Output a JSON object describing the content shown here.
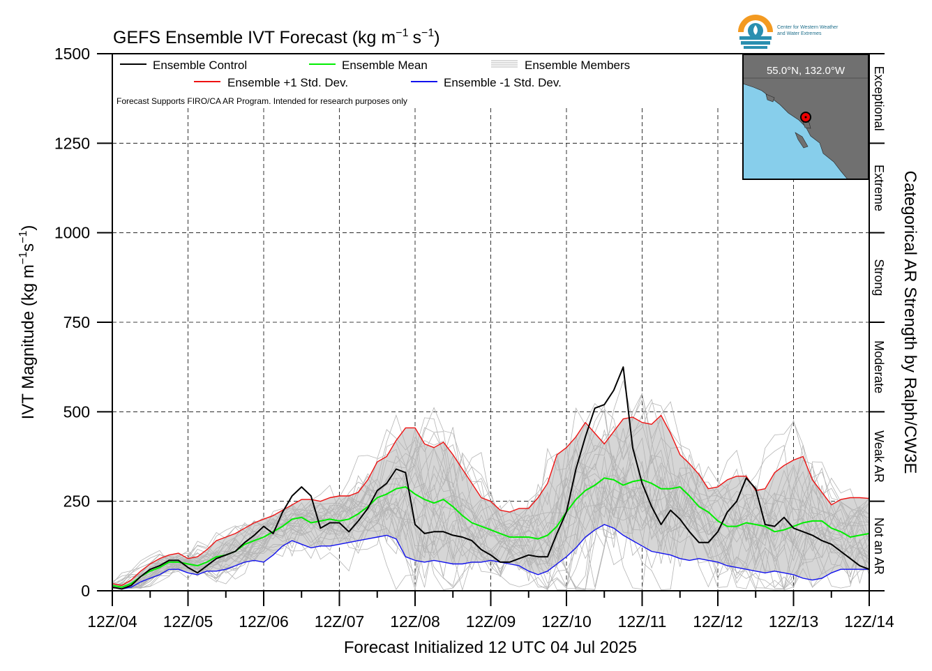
{
  "chart_data": {
    "type": "line",
    "title": "GEFS Ensemble IVT Forecast (kg m",
    "title_unit_tail": "s",
    "title_exp": "−1",
    "ylabel": "IVT Magnitude (kg m",
    "ylabel_mid": "s",
    "ylabel_exp": "−1",
    "ylabel_close": ")",
    "title_close": ")",
    "xlabel": "Forecast Initialized 12 UTC 04 Jul 2025",
    "right_label": "Categorical AR Strength by Ralph/CW3E",
    "note": "Forecast Supports FIRO/CA AR Program. Intended for research purposes only",
    "ylim": [
      0,
      1500
    ],
    "yticks": [
      0,
      250,
      500,
      750,
      1000,
      1250,
      1500
    ],
    "xlim": [
      0,
      240
    ],
    "xticks": [
      {
        "h": 0,
        "label": "12Z/04"
      },
      {
        "h": 24,
        "label": "12Z/05"
      },
      {
        "h": 48,
        "label": "12Z/06"
      },
      {
        "h": 72,
        "label": "12Z/07"
      },
      {
        "h": 96,
        "label": "12Z/08"
      },
      {
        "h": 120,
        "label": "12Z/09"
      },
      {
        "h": 144,
        "label": "12Z/10"
      },
      {
        "h": 168,
        "label": "12Z/11"
      },
      {
        "h": 192,
        "label": "12Z/12"
      },
      {
        "h": 216,
        "label": "12Z/13"
      },
      {
        "h": 240,
        "label": "12Z/14"
      }
    ],
    "categories": [
      {
        "label": "Not an AR",
        "from": 0,
        "to": 250
      },
      {
        "label": "Weak AR",
        "from": 250,
        "to": 500
      },
      {
        "label": "Moderate",
        "from": 500,
        "to": 750
      },
      {
        "label": "Strong",
        "from": 750,
        "to": 1000
      },
      {
        "label": "Extreme",
        "from": 1000,
        "to": 1250
      },
      {
        "label": "Exceptional",
        "from": 1250,
        "to": 1500
      }
    ],
    "legend": {
      "control": "Ensemble Control",
      "mean": "Ensemble Mean",
      "members": "Ensemble Members",
      "plus": "Ensemble +1 Std. Dev.",
      "minus": "Ensemble -1 Std. Dev."
    },
    "colors": {
      "control": "#000000",
      "mean": "#00ee00",
      "plus": "#ee1111",
      "minus": "#1111ee",
      "members": "#b4b4b4",
      "band": "#d6d6d6"
    },
    "series": [
      {
        "name": "Ensemble Control",
        "x": [
          0,
          3,
          6,
          9,
          12,
          15,
          18,
          21,
          24,
          27,
          30,
          33,
          36,
          39,
          42,
          45,
          48,
          51,
          54,
          57,
          60,
          63,
          66,
          69,
          72,
          75,
          78,
          81,
          84,
          87,
          90,
          93,
          96,
          99,
          102,
          105,
          108,
          111,
          114,
          117,
          120,
          123,
          126,
          129,
          132,
          135,
          138,
          141,
          144,
          147,
          150,
          153,
          156,
          159,
          162,
          165,
          168,
          171,
          174,
          177,
          180,
          183,
          186,
          189,
          192,
          195,
          198,
          201,
          204,
          207,
          210,
          213,
          216,
          219,
          222,
          225,
          228,
          231,
          234,
          237,
          240
        ],
        "values": [
          10,
          5,
          15,
          40,
          60,
          70,
          85,
          85,
          65,
          50,
          70,
          90,
          100,
          110,
          135,
          155,
          180,
          160,
          220,
          265,
          290,
          265,
          175,
          190,
          190,
          165,
          195,
          230,
          280,
          300,
          340,
          330,
          185,
          160,
          165,
          165,
          155,
          150,
          140,
          115,
          100,
          80,
          80,
          90,
          100,
          95,
          95,
          160,
          220,
          340,
          430,
          510,
          520,
          560,
          625,
          400,
          300,
          235,
          185,
          225,
          200,
          165,
          135,
          135,
          165,
          220,
          250,
          315,
          285,
          185,
          180,
          205,
          175,
          165,
          155,
          140,
          130,
          110,
          90,
          70,
          60
        ]
      },
      {
        "name": "Ensemble Mean",
        "x": [
          0,
          3,
          6,
          9,
          12,
          15,
          18,
          21,
          24,
          27,
          30,
          33,
          36,
          39,
          42,
          45,
          48,
          51,
          54,
          57,
          60,
          63,
          66,
          69,
          72,
          75,
          78,
          81,
          84,
          87,
          90,
          93,
          96,
          99,
          102,
          105,
          108,
          111,
          114,
          117,
          120,
          123,
          126,
          129,
          132,
          135,
          138,
          141,
          144,
          147,
          150,
          153,
          156,
          159,
          162,
          165,
          168,
          171,
          174,
          177,
          180,
          183,
          186,
          189,
          192,
          195,
          198,
          201,
          204,
          207,
          210,
          213,
          216,
          219,
          222,
          225,
          228,
          231,
          234,
          237,
          240
        ],
        "values": [
          15,
          10,
          20,
          40,
          55,
          65,
          80,
          80,
          75,
          70,
          80,
          95,
          100,
          110,
          130,
          140,
          150,
          165,
          180,
          200,
          205,
          190,
          195,
          200,
          195,
          200,
          215,
          235,
          260,
          270,
          285,
          290,
          270,
          255,
          245,
          255,
          235,
          210,
          190,
          180,
          170,
          160,
          150,
          150,
          150,
          145,
          155,
          180,
          220,
          255,
          280,
          295,
          315,
          310,
          295,
          305,
          310,
          300,
          285,
          285,
          290,
          265,
          235,
          220,
          195,
          180,
          180,
          190,
          185,
          180,
          165,
          170,
          180,
          190,
          195,
          195,
          175,
          165,
          150,
          155,
          160
        ]
      },
      {
        "name": "Ensemble +1 Std. Dev.",
        "x": [
          0,
          3,
          6,
          9,
          12,
          15,
          18,
          21,
          24,
          27,
          30,
          33,
          36,
          39,
          42,
          45,
          48,
          51,
          54,
          57,
          60,
          63,
          66,
          69,
          72,
          75,
          78,
          81,
          84,
          87,
          90,
          93,
          96,
          99,
          102,
          105,
          108,
          111,
          114,
          117,
          120,
          123,
          126,
          129,
          132,
          135,
          138,
          141,
          144,
          147,
          150,
          153,
          156,
          159,
          162,
          165,
          168,
          171,
          174,
          177,
          180,
          183,
          186,
          189,
          192,
          195,
          198,
          201,
          204,
          207,
          210,
          213,
          216,
          219,
          222,
          225,
          228,
          231,
          234,
          237,
          240
        ],
        "values": [
          20,
          15,
          30,
          55,
          75,
          90,
          100,
          105,
          90,
          95,
          115,
          140,
          150,
          160,
          175,
          190,
          200,
          210,
          225,
          240,
          255,
          255,
          250,
          260,
          265,
          265,
          275,
          310,
          360,
          375,
          420,
          455,
          455,
          410,
          400,
          415,
          380,
          340,
          300,
          260,
          250,
          225,
          220,
          230,
          230,
          260,
          300,
          380,
          400,
          430,
          470,
          440,
          410,
          445,
          480,
          485,
          470,
          465,
          490,
          440,
          380,
          355,
          325,
          285,
          290,
          310,
          320,
          320,
          280,
          285,
          330,
          350,
          365,
          375,
          310,
          275,
          240,
          255,
          260,
          260,
          258
        ]
      },
      {
        "name": "Ensemble -1 Std. Dev.",
        "x": [
          0,
          3,
          6,
          9,
          12,
          15,
          18,
          21,
          24,
          27,
          30,
          33,
          36,
          39,
          42,
          45,
          48,
          51,
          54,
          57,
          60,
          63,
          66,
          69,
          72,
          75,
          78,
          81,
          84,
          87,
          90,
          93,
          96,
          99,
          102,
          105,
          108,
          111,
          114,
          117,
          120,
          123,
          126,
          129,
          132,
          135,
          138,
          141,
          144,
          147,
          150,
          153,
          156,
          159,
          162,
          165,
          168,
          171,
          174,
          177,
          180,
          183,
          186,
          189,
          192,
          195,
          198,
          201,
          204,
          207,
          210,
          213,
          216,
          219,
          222,
          225,
          228,
          231,
          234,
          237,
          240
        ],
        "values": [
          10,
          5,
          10,
          25,
          35,
          45,
          60,
          60,
          50,
          45,
          55,
          55,
          60,
          70,
          80,
          85,
          80,
          100,
          125,
          140,
          130,
          120,
          125,
          125,
          130,
          135,
          140,
          145,
          150,
          155,
          145,
          95,
          85,
          80,
          85,
          80,
          75,
          75,
          80,
          80,
          85,
          80,
          75,
          70,
          55,
          45,
          55,
          75,
          95,
          120,
          150,
          170,
          185,
          175,
          155,
          140,
          125,
          110,
          105,
          100,
          90,
          85,
          90,
          85,
          80,
          70,
          65,
          60,
          55,
          50,
          55,
          50,
          45,
          35,
          30,
          35,
          50,
          60,
          60,
          60,
          60
        ]
      }
    ],
    "inset_map": {
      "label": "55.0°N, 132.0°W"
    },
    "logo": {
      "text1": "Center for Western Weather",
      "text2": "and Water Extremes"
    }
  }
}
